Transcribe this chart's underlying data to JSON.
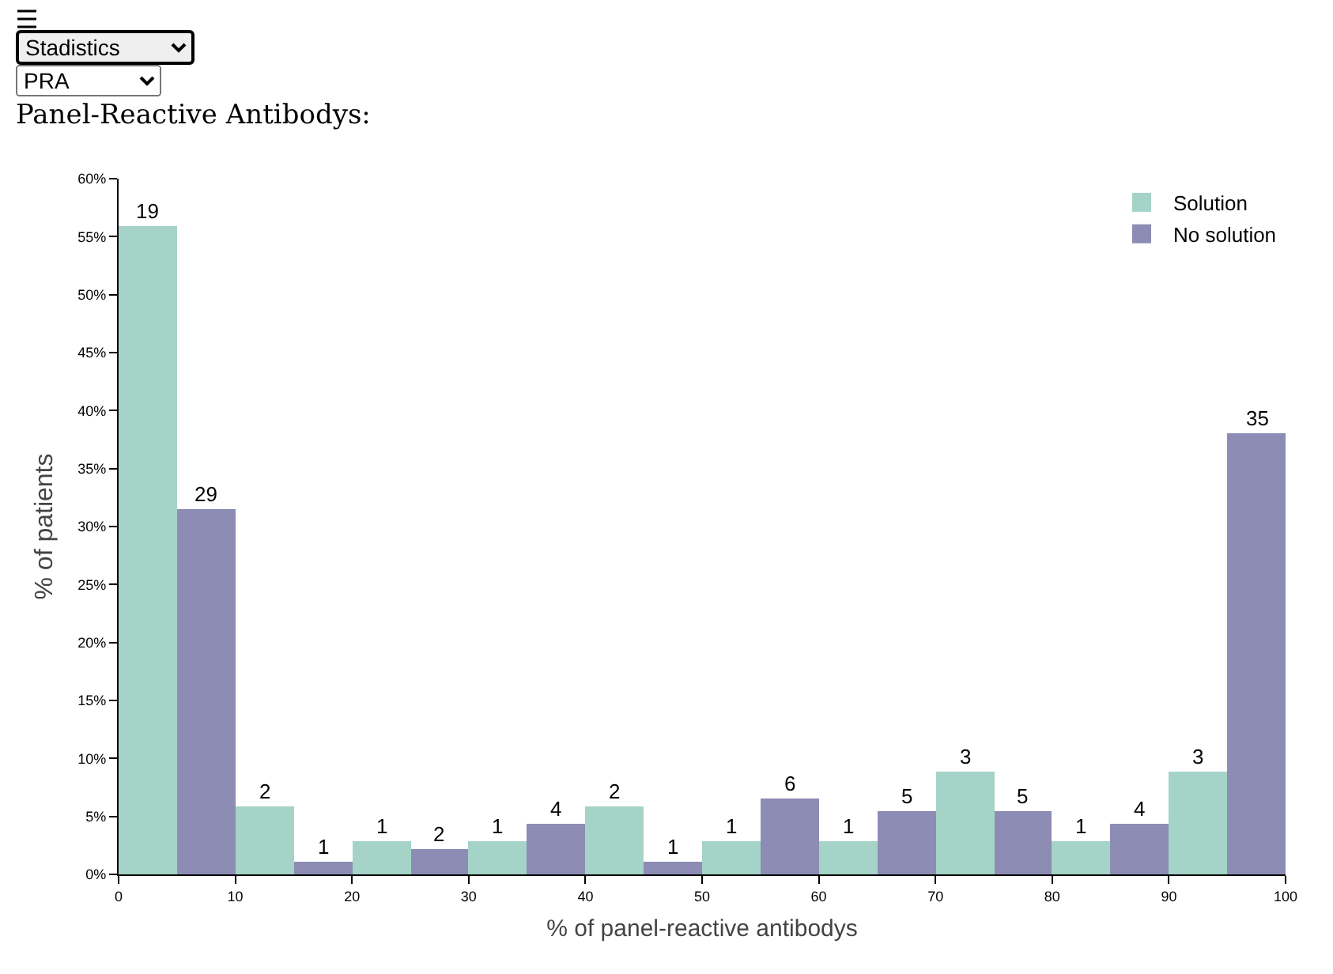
{
  "chart_data": {
    "type": "bar",
    "title": "Panel-Reactive Antibodys:",
    "xlabel": "% of panel-reactive antibodys",
    "ylabel": "% of patients",
    "annotations": [
      "Stadistics",
      "PRA",
      {
        "text": "19",
        "x": 2.5,
        "y": 55.9
      },
      {
        "text": "2",
        "x": 12.5,
        "y": 5.9
      },
      {
        "text": "1",
        "x": 22.5,
        "y": 2.9
      },
      {
        "text": "1",
        "x": 32.5,
        "y": 2.9
      },
      {
        "text": "2",
        "x": 42.5,
        "y": 5.9
      },
      {
        "text": "1",
        "x": 52.5,
        "y": 2.9
      },
      {
        "text": "1",
        "x": 62.5,
        "y": 2.9
      },
      {
        "text": "3",
        "x": 72.5,
        "y": 8.8
      },
      {
        "text": "1",
        "x": 82.5,
        "y": 2.9
      },
      {
        "text": "3",
        "x": 92.5,
        "y": 8.8
      },
      {
        "text": "29",
        "x": 7.5,
        "y": 31.5
      },
      {
        "text": "1",
        "x": 17.5,
        "y": 1.1
      },
      {
        "text": "2",
        "x": 27.5,
        "y": 2.2
      },
      {
        "text": "4",
        "x": 37.5,
        "y": 4.3
      },
      {
        "text": "1",
        "x": 47.5,
        "y": 1.1
      },
      {
        "text": "6",
        "x": 57.5,
        "y": 6.5
      },
      {
        "text": "5",
        "x": 67.5,
        "y": 5.4
      },
      {
        "text": "5",
        "x": 77.5,
        "y": 5.4
      },
      {
        "text": "4",
        "x": 87.5,
        "y": 4.3
      },
      {
        "text": "35",
        "x": 97.5,
        "y": 38.0
      }
    ],
    "series": [
      {
        "name": "Solution",
        "color": "#a6d3c7",
        "x": [
          2.5,
          12.5,
          22.5,
          32.5,
          42.5,
          52.5,
          62.5,
          72.5,
          82.5,
          92.5
        ],
        "values": [
          55.9,
          5.9,
          2.9,
          2.9,
          5.9,
          2.9,
          2.9,
          8.8,
          2.9,
          8.8
        ]
      },
      {
        "name": "No solution",
        "color": "#8c8cb4",
        "x": [
          7.5,
          17.5,
          27.5,
          37.5,
          47.5,
          57.5,
          67.5,
          77.5,
          87.5,
          97.5
        ],
        "values": [
          31.5,
          1.1,
          2.2,
          4.3,
          1.1,
          6.5,
          5.4,
          5.4,
          4.3,
          38.0
        ]
      }
    ],
    "xlim": [
      0,
      100
    ],
    "xticks": [
      0,
      10,
      20,
      30,
      40,
      50,
      60,
      70,
      80,
      90,
      100
    ],
    "ylim": [
      0,
      60
    ],
    "yticks": [
      {
        "value": 0,
        "label": "0%"
      },
      {
        "value": 5,
        "label": "5%"
      },
      {
        "value": 10,
        "label": "10%"
      },
      {
        "value": 15,
        "label": "15%"
      },
      {
        "value": 20,
        "label": "20%"
      },
      {
        "value": 25,
        "label": "25%"
      },
      {
        "value": 30,
        "label": "30%"
      },
      {
        "value": 35,
        "label": "35%"
      },
      {
        "value": 40,
        "label": "40%"
      },
      {
        "value": 45,
        "label": "45%"
      },
      {
        "value": 50,
        "label": "50%"
      },
      {
        "value": 55,
        "label": "55%"
      },
      {
        "value": 60,
        "label": "60%"
      }
    ],
    "grid": false,
    "legend": "top right"
  }
}
